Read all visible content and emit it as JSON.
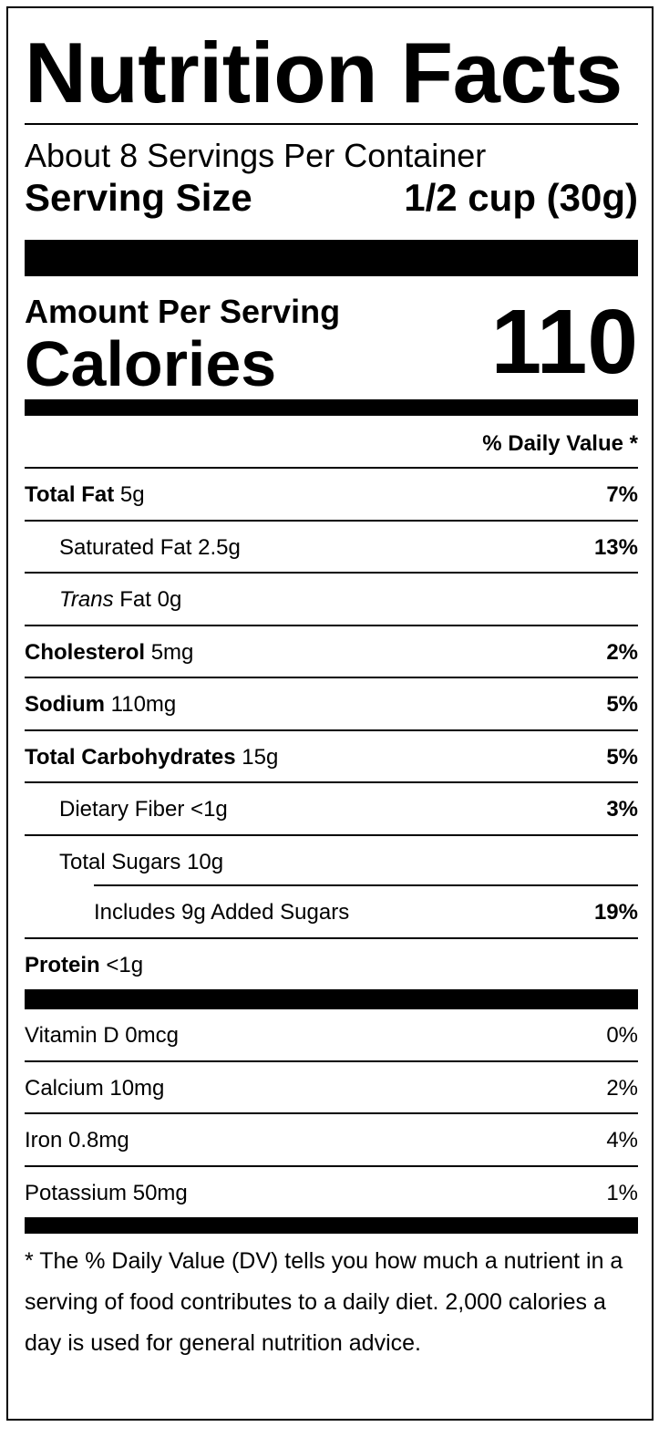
{
  "title": "Nutrition Facts",
  "servings_per_container": "About 8 Servings Per Container",
  "serving_size": {
    "label": "Serving Size",
    "value": "1/2 cup (30g)"
  },
  "amount_per_serving": "Amount Per Serving",
  "calories": {
    "label": "Calories",
    "value": "110"
  },
  "daily_value_header": "% Daily Value *",
  "nutrients": [
    {
      "name": "Total Fat",
      "amount": "5g",
      "dv": "7%"
    },
    {
      "name": "Saturated Fat",
      "amount": "2.5g",
      "dv": "13%"
    },
    {
      "name": "Trans",
      "name_rest": "Fat",
      "amount": "0g",
      "dv": ""
    },
    {
      "name": "Cholesterol",
      "amount": "5mg",
      "dv": "2%"
    },
    {
      "name": "Sodium",
      "amount": "110mg",
      "dv": "5%"
    },
    {
      "name": "Total Carbohydrates",
      "amount": "15g",
      "dv": "5%"
    },
    {
      "name": "Dietary Fiber",
      "amount": "<1g",
      "dv": "3%"
    },
    {
      "name": "Total Sugars",
      "amount": "10g",
      "dv": ""
    },
    {
      "name": "Includes 9g Added Sugars",
      "amount": "",
      "dv": "19%"
    },
    {
      "name": "Protein",
      "amount": "<1g",
      "dv": ""
    }
  ],
  "vitamins": [
    {
      "name": "Vitamin D",
      "amount": "0mcg",
      "dv": "0%"
    },
    {
      "name": "Calcium",
      "amount": "10mg",
      "dv": "2%"
    },
    {
      "name": "Iron",
      "amount": "0.8mg",
      "dv": "4%"
    },
    {
      "name": "Potassium",
      "amount": "50mg",
      "dv": "1%"
    }
  ],
  "footnote": "* The % Daily Value (DV) tells you how much a nutrient in a serving of food contributes to a daily diet. 2,000 calories a day is used for general nutrition advice."
}
